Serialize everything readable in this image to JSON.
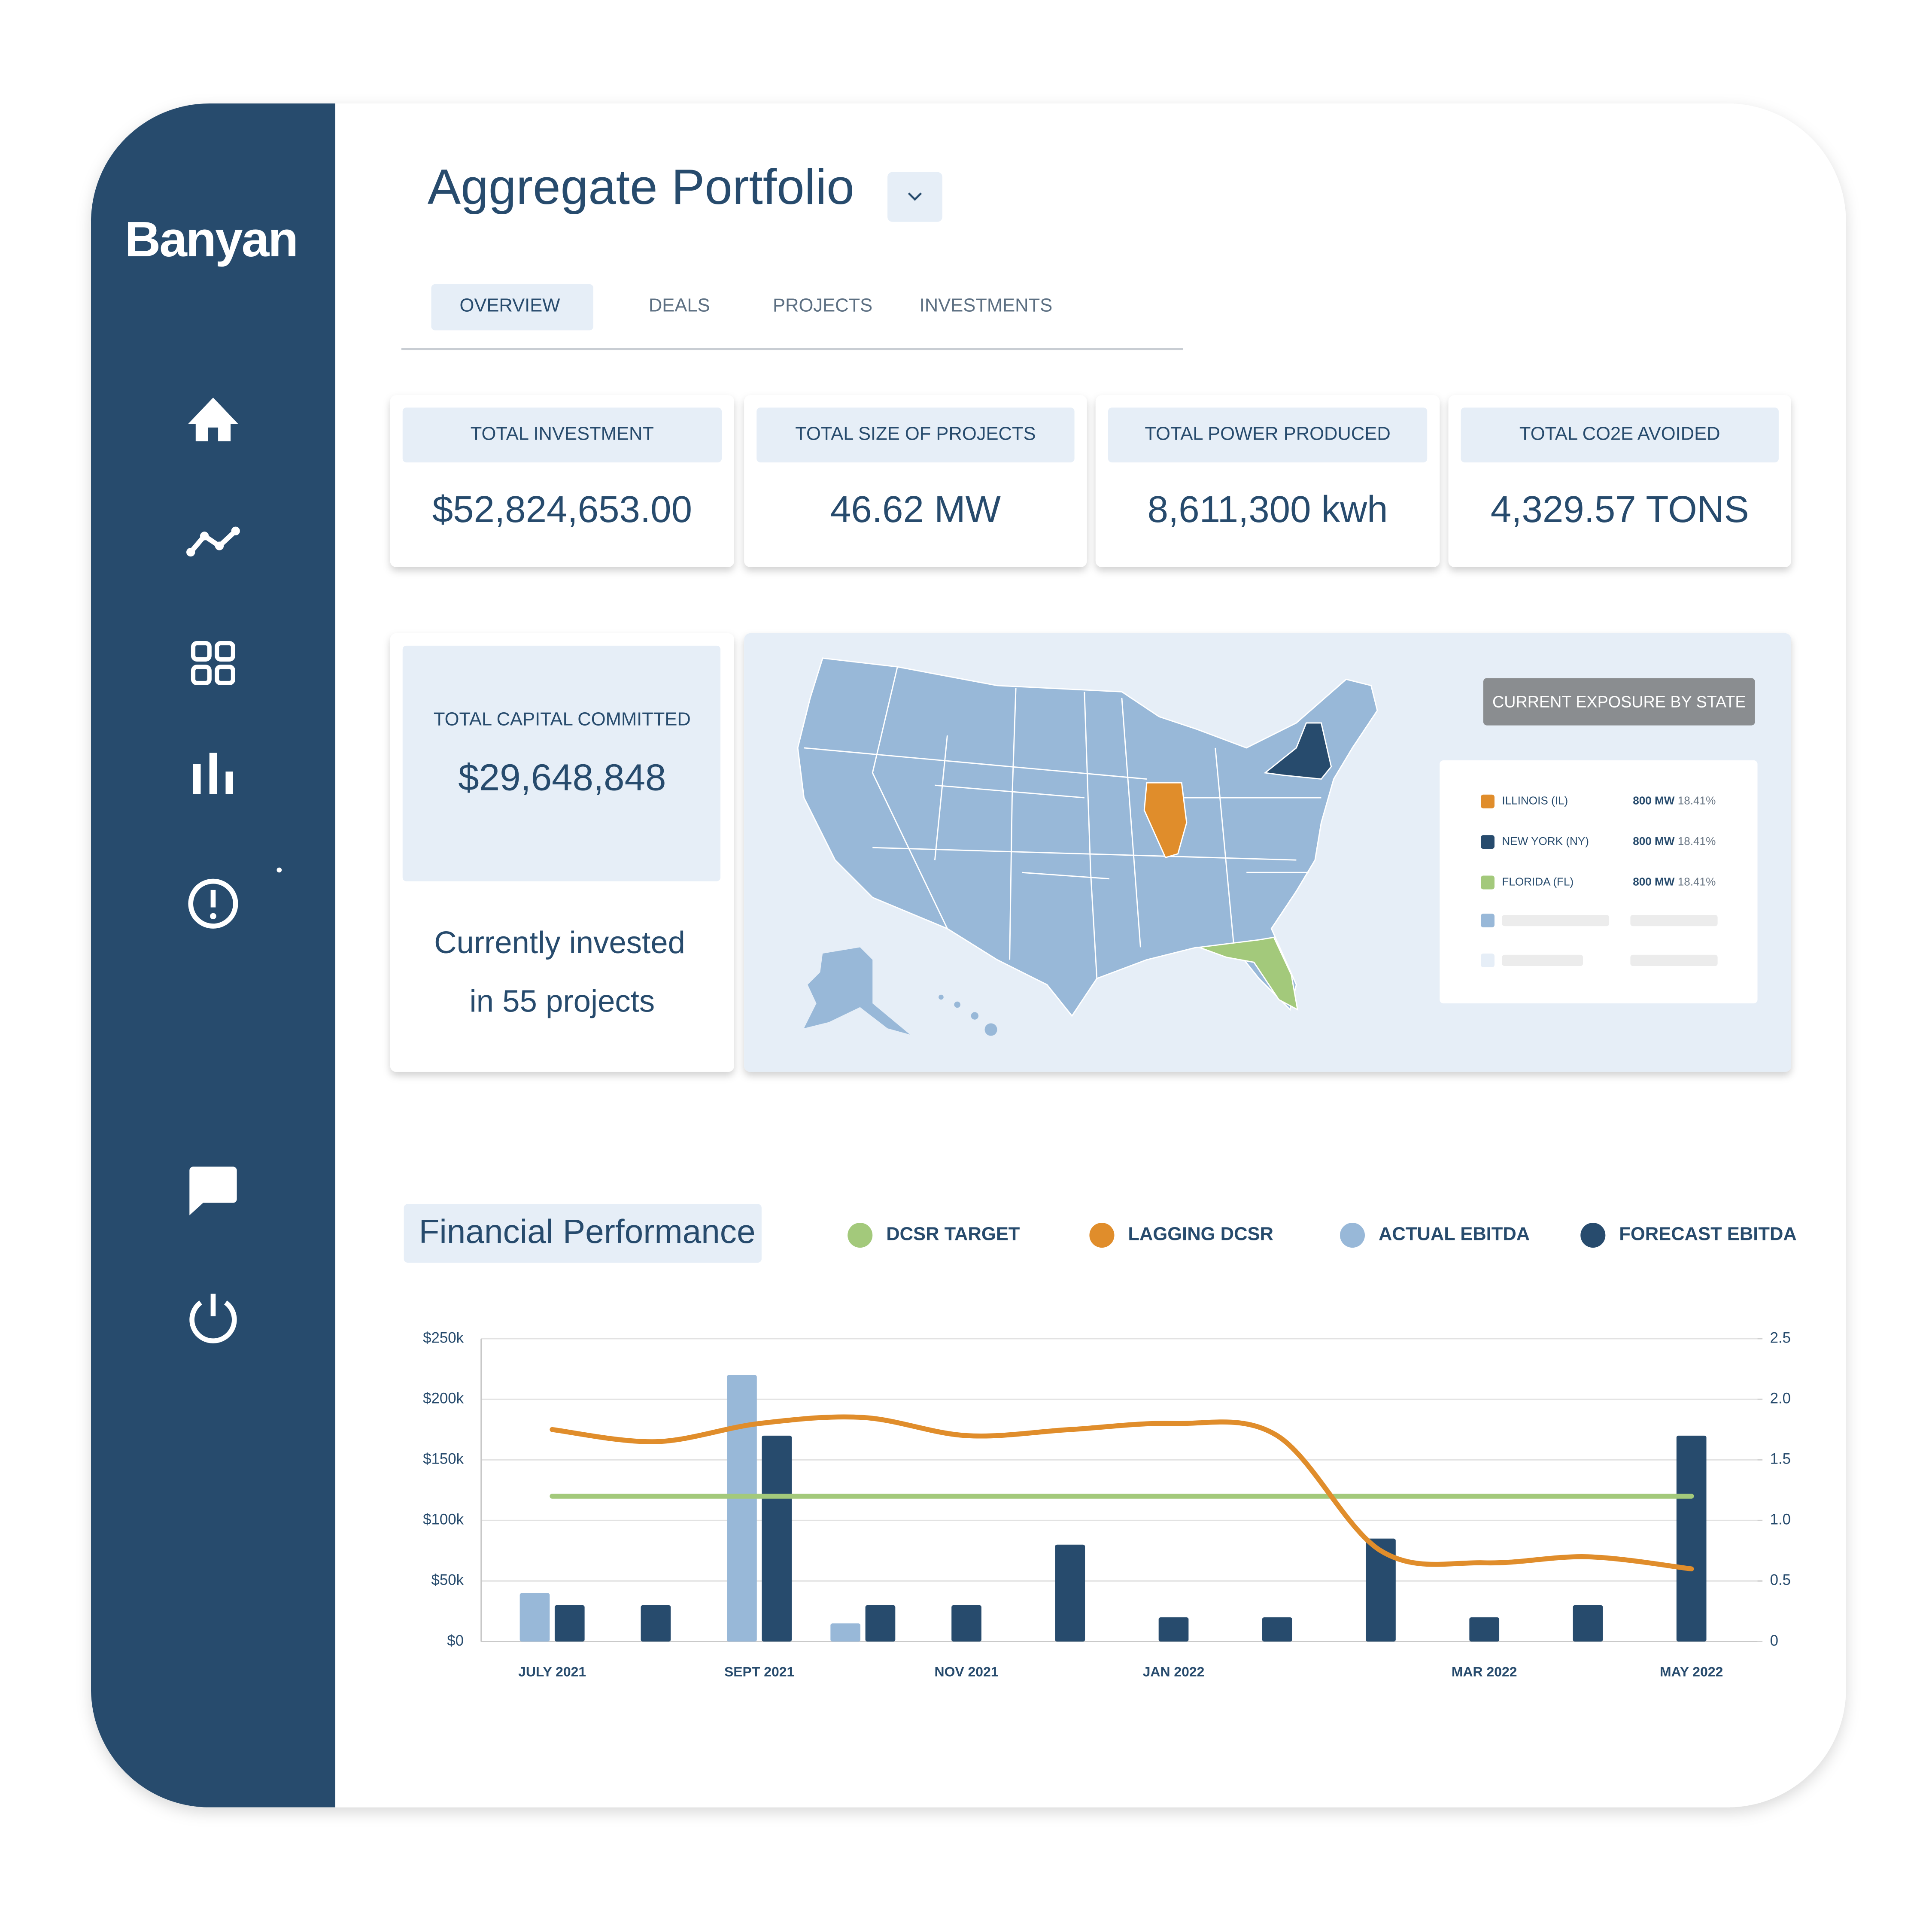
{
  "brand": "Banyan",
  "header": {
    "title": "Aggregate Portfolio"
  },
  "tabs": [
    "OVERVIEW",
    "DEALS",
    "PROJECTS",
    "INVESTMENTS"
  ],
  "kpis": [
    {
      "label": "TOTAL INVESTMENT",
      "value": "$52,824,653.00"
    },
    {
      "label": "TOTAL SIZE OF PROJECTS",
      "value": "46.62 MW"
    },
    {
      "label": "TOTAL POWER PRODUCED",
      "value": "8,611,300 kwh"
    },
    {
      "label": "TOTAL CO2E AVOIDED",
      "value": "4,329.57 TONS"
    }
  ],
  "capital": {
    "label": "TOTAL CAPITAL COMMITTED",
    "value": "$29,648,848",
    "note": [
      "Currently invested",
      "in 55 projects"
    ]
  },
  "map": {
    "button": "CURRENT EXPOSURE BY STATE",
    "legend": [
      {
        "state": "ILLINOIS (IL)",
        "color": "#e08d2b",
        "power": "800 MW",
        "share": "18.41%"
      },
      {
        "state": "NEW YORK (NY)",
        "color": "#274b6d",
        "power": "800 MW",
        "share": "18.41%"
      },
      {
        "state": "FLORIDA (FL)",
        "color": "#a3c97b",
        "power": "800 MW",
        "share": "18.41%"
      }
    ]
  },
  "chart_data": {
    "type": "combo",
    "title": "Financial Performance",
    "categories": [
      "JULY 2021",
      null,
      "SEPT 2021",
      null,
      "NOV 2021",
      null,
      "JAN 2022",
      null,
      null,
      "MAR 2022",
      null,
      "MAY 2022"
    ],
    "series": [
      {
        "name": "DCSR TARGET",
        "color": "#a3c97b",
        "type": "line",
        "axis": "y2",
        "values": [
          1.2,
          1.2,
          1.2,
          1.2,
          1.2,
          1.2,
          1.2,
          1.2,
          1.2,
          1.2,
          1.2,
          1.2
        ]
      },
      {
        "name": "LAGGING DCSR",
        "color": "#e08d2b",
        "type": "line",
        "axis": "y2",
        "smooth": true,
        "values": [
          1.75,
          1.65,
          1.8,
          1.85,
          1.7,
          1.75,
          1.8,
          1.7,
          0.75,
          0.65,
          0.7,
          0.6
        ]
      },
      {
        "name": "ACTUAL EBITDA",
        "color": "#98b8d8",
        "type": "bar",
        "values": [
          40000,
          null,
          220000,
          15000,
          null,
          null,
          null,
          null,
          null,
          null,
          null,
          null
        ]
      },
      {
        "name": "FORECAST EBITDA",
        "color": "#274b6d",
        "type": "bar",
        "values": [
          30000,
          30000,
          170000,
          30000,
          30000,
          80000,
          20000,
          20000,
          85000,
          20000,
          30000,
          170000
        ]
      }
    ],
    "ylim": [
      0,
      250000
    ],
    "yticks": [
      {
        "value": 0,
        "label": "$0"
      },
      {
        "value": 50000,
        "label": "$50k"
      },
      {
        "value": 100000,
        "label": "$100k"
      },
      {
        "value": 150000,
        "label": "$150k"
      },
      {
        "value": 200000,
        "label": "$200k"
      },
      {
        "value": 250000,
        "label": "$250k"
      }
    ],
    "y2lim": [
      0,
      2.5
    ],
    "y2ticks": [
      0,
      0.5,
      {
        "value": 1,
        "label": "1.0"
      },
      1.5,
      {
        "value": 2,
        "label": "2.0"
      },
      2.5
    ],
    "grid": true
  }
}
